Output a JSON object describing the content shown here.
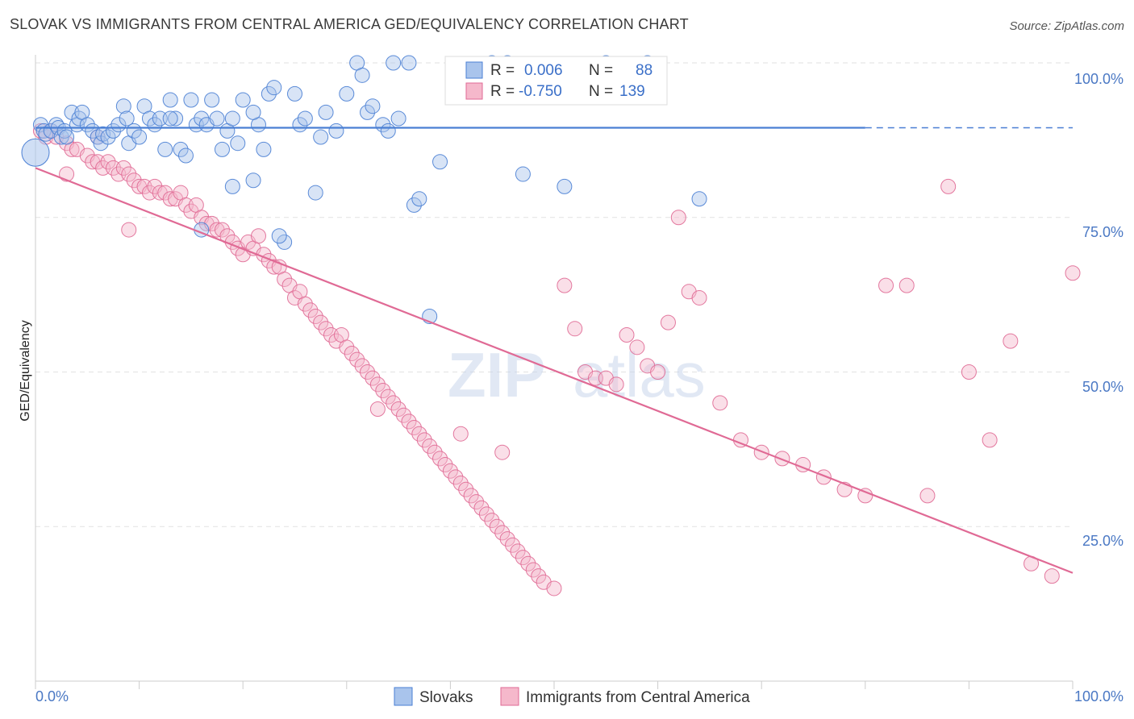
{
  "header": {
    "title": "SLOVAK VS IMMIGRANTS FROM CENTRAL AMERICA GED/EQUIVALENCY CORRELATION CHART",
    "source": "Source: ZipAtlas.com"
  },
  "watermark": {
    "zip": "ZIP",
    "atlas": "atlas"
  },
  "colors": {
    "blue": "#4a7fd4",
    "blue_fill": "#a9c4ec",
    "pink": "#e06a95",
    "pink_fill": "#f5b8cb",
    "axis": "#cccccc",
    "grid": "#e2e2e2"
  },
  "chart_data": {
    "type": "scatter",
    "xlabel": "",
    "ylabel": "GED/Equivalency",
    "xlim": [
      0,
      100
    ],
    "ylim": [
      0,
      100
    ],
    "x_tick_labels": [
      "0.0%",
      "100.0%"
    ],
    "y_tick_labels": [
      "25.0%",
      "50.0%",
      "75.0%",
      "100.0%"
    ],
    "y_ticks": [
      25,
      50,
      75,
      100
    ],
    "legend": {
      "position": "top-center",
      "entries": [
        {
          "r_label": "R =",
          "r_value": "0.006",
          "n_label": "N =",
          "n_value": "88"
        },
        {
          "r_label": "R =",
          "r_value": "-0.750",
          "n_label": "N =",
          "n_value": "139"
        }
      ]
    },
    "bottom_legend": [
      "Slovaks",
      "Immigrants from Central America"
    ],
    "series": [
      {
        "name": "Slovaks",
        "color": "#4a7fd4",
        "trend": {
          "x0": 0,
          "y0": 89.5,
          "x1": 80,
          "y1": 89.5,
          "dash_to": 100
        },
        "points": [
          [
            0.5,
            90
          ],
          [
            0.8,
            89
          ],
          [
            1,
            88.5
          ],
          [
            1.5,
            89
          ],
          [
            2,
            90
          ],
          [
            2.2,
            89.5
          ],
          [
            2.5,
            88
          ],
          [
            2.8,
            89
          ],
          [
            3,
            88
          ],
          [
            3.5,
            92
          ],
          [
            4,
            90
          ],
          [
            4.2,
            91
          ],
          [
            4.5,
            92
          ],
          [
            5,
            90
          ],
          [
            5.5,
            89
          ],
          [
            6,
            88
          ],
          [
            6.3,
            87
          ],
          [
            6.5,
            88.5
          ],
          [
            7,
            88
          ],
          [
            7.5,
            89
          ],
          [
            8,
            90
          ],
          [
            8.5,
            93
          ],
          [
            8.8,
            91
          ],
          [
            9,
            87
          ],
          [
            9.5,
            89
          ],
          [
            10,
            88
          ],
          [
            10.5,
            93
          ],
          [
            11,
            91
          ],
          [
            11.5,
            90
          ],
          [
            12,
            91
          ],
          [
            12.5,
            86
          ],
          [
            13,
            94
          ],
          [
            13.5,
            91
          ],
          [
            14,
            86
          ],
          [
            14.5,
            85
          ],
          [
            15,
            94
          ],
          [
            15.5,
            90
          ],
          [
            16,
            91
          ],
          [
            16.5,
            90
          ],
          [
            17,
            94
          ],
          [
            17.5,
            91
          ],
          [
            18,
            86
          ],
          [
            18.5,
            89
          ],
          [
            19,
            91
          ],
          [
            19.5,
            87
          ],
          [
            20,
            94
          ],
          [
            21,
            81
          ],
          [
            21.5,
            90
          ],
          [
            22,
            86
          ],
          [
            22.5,
            95
          ],
          [
            23,
            96
          ],
          [
            24,
            71
          ],
          [
            25,
            95
          ],
          [
            25.5,
            90
          ],
          [
            26,
            91
          ],
          [
            27,
            79
          ],
          [
            27.5,
            88
          ],
          [
            28,
            92
          ],
          [
            29,
            89
          ],
          [
            31,
            100
          ],
          [
            31.5,
            98
          ],
          [
            32,
            92
          ],
          [
            32.5,
            93
          ],
          [
            33.5,
            90
          ],
          [
            34,
            89
          ],
          [
            34.5,
            100
          ],
          [
            35,
            91
          ],
          [
            36,
            100
          ],
          [
            36.5,
            77
          ],
          [
            37,
            78
          ],
          [
            39,
            84
          ],
          [
            44,
            100
          ],
          [
            45.5,
            100
          ],
          [
            46,
            97
          ],
          [
            47,
            82
          ],
          [
            51,
            80
          ],
          [
            55,
            100
          ],
          [
            59,
            100
          ],
          [
            64,
            78
          ],
          [
            16,
            73
          ],
          [
            23.5,
            72
          ],
          [
            21,
            92
          ],
          [
            38,
            59
          ],
          [
            30,
            95
          ],
          [
            19,
            80
          ],
          [
            13,
            91
          ]
        ],
        "big_point": [
          0,
          85.5
        ]
      },
      {
        "name": "Immigrants from Central America",
        "color": "#e06a95",
        "trend": {
          "x0": 0,
          "y0": 83,
          "x1": 100,
          "y1": 17.5
        },
        "points": [
          [
            0.5,
            89
          ],
          [
            1,
            88
          ],
          [
            1.5,
            89
          ],
          [
            2,
            88
          ],
          [
            3,
            87
          ],
          [
            3.5,
            86
          ],
          [
            4,
            86
          ],
          [
            5,
            85
          ],
          [
            5.5,
            84
          ],
          [
            6,
            84
          ],
          [
            6.5,
            83
          ],
          [
            7,
            84
          ],
          [
            7.5,
            83
          ],
          [
            8,
            82
          ],
          [
            8.5,
            83
          ],
          [
            9,
            82
          ],
          [
            9.5,
            81
          ],
          [
            10,
            80
          ],
          [
            10.5,
            80
          ],
          [
            11,
            79
          ],
          [
            11.5,
            80
          ],
          [
            12,
            79
          ],
          [
            12.5,
            79
          ],
          [
            13,
            78
          ],
          [
            13.5,
            78
          ],
          [
            14,
            79
          ],
          [
            14.5,
            77
          ],
          [
            15,
            76
          ],
          [
            15.5,
            77
          ],
          [
            16,
            75
          ],
          [
            16.5,
            74
          ],
          [
            17,
            74
          ],
          [
            17.5,
            73
          ],
          [
            18,
            73
          ],
          [
            18.5,
            72
          ],
          [
            19,
            71
          ],
          [
            19.5,
            70
          ],
          [
            20,
            69
          ],
          [
            20.5,
            71
          ],
          [
            21,
            70
          ],
          [
            21.5,
            72
          ],
          [
            22,
            69
          ],
          [
            22.5,
            68
          ],
          [
            23,
            67
          ],
          [
            23.5,
            67
          ],
          [
            24,
            65
          ],
          [
            24.5,
            64
          ],
          [
            25,
            62
          ],
          [
            25.5,
            63
          ],
          [
            26,
            61
          ],
          [
            26.5,
            60
          ],
          [
            27,
            59
          ],
          [
            27.5,
            58
          ],
          [
            28,
            57
          ],
          [
            28.5,
            56
          ],
          [
            29,
            55
          ],
          [
            29.5,
            56
          ],
          [
            30,
            54
          ],
          [
            30.5,
            53
          ],
          [
            31,
            52
          ],
          [
            31.5,
            51
          ],
          [
            32,
            50
          ],
          [
            32.5,
            49
          ],
          [
            33,
            48
          ],
          [
            33.5,
            47
          ],
          [
            34,
            46
          ],
          [
            34.5,
            45
          ],
          [
            35,
            44
          ],
          [
            35.5,
            43
          ],
          [
            36,
            42
          ],
          [
            36.5,
            41
          ],
          [
            37,
            40
          ],
          [
            37.5,
            39
          ],
          [
            38,
            38
          ],
          [
            38.5,
            37
          ],
          [
            39,
            36
          ],
          [
            39.5,
            35
          ],
          [
            40,
            34
          ],
          [
            40.5,
            33
          ],
          [
            41,
            32
          ],
          [
            41.5,
            31
          ],
          [
            42,
            30
          ],
          [
            42.5,
            29
          ],
          [
            43,
            28
          ],
          [
            43.5,
            27
          ],
          [
            44,
            26
          ],
          [
            44.5,
            25
          ],
          [
            45,
            24
          ],
          [
            45.5,
            23
          ],
          [
            46,
            22
          ],
          [
            46.5,
            21
          ],
          [
            47,
            20
          ],
          [
            47.5,
            19
          ],
          [
            48,
            18
          ],
          [
            48.5,
            17
          ],
          [
            49,
            16
          ],
          [
            50,
            15
          ],
          [
            51,
            64
          ],
          [
            52,
            57
          ],
          [
            53,
            50
          ],
          [
            54,
            49
          ],
          [
            55,
            49
          ],
          [
            56,
            48
          ],
          [
            57,
            56
          ],
          [
            58,
            54
          ],
          [
            59,
            51
          ],
          [
            60,
            50
          ],
          [
            61,
            58
          ],
          [
            62,
            75
          ],
          [
            63,
            63
          ],
          [
            64,
            62
          ],
          [
            66,
            45
          ],
          [
            68,
            39
          ],
          [
            70,
            37
          ],
          [
            72,
            36
          ],
          [
            74,
            35
          ],
          [
            76,
            33
          ],
          [
            78,
            31
          ],
          [
            80,
            30
          ],
          [
            82,
            64
          ],
          [
            84,
            64
          ],
          [
            86,
            30
          ],
          [
            88,
            80
          ],
          [
            90,
            50
          ],
          [
            92,
            39
          ],
          [
            94,
            55
          ],
          [
            96,
            19
          ],
          [
            98,
            17
          ],
          [
            100,
            66
          ],
          [
            6,
            88
          ],
          [
            3,
            82
          ],
          [
            9,
            73
          ],
          [
            33,
            44
          ],
          [
            41,
            40
          ],
          [
            45,
            37
          ]
        ]
      }
    ]
  }
}
